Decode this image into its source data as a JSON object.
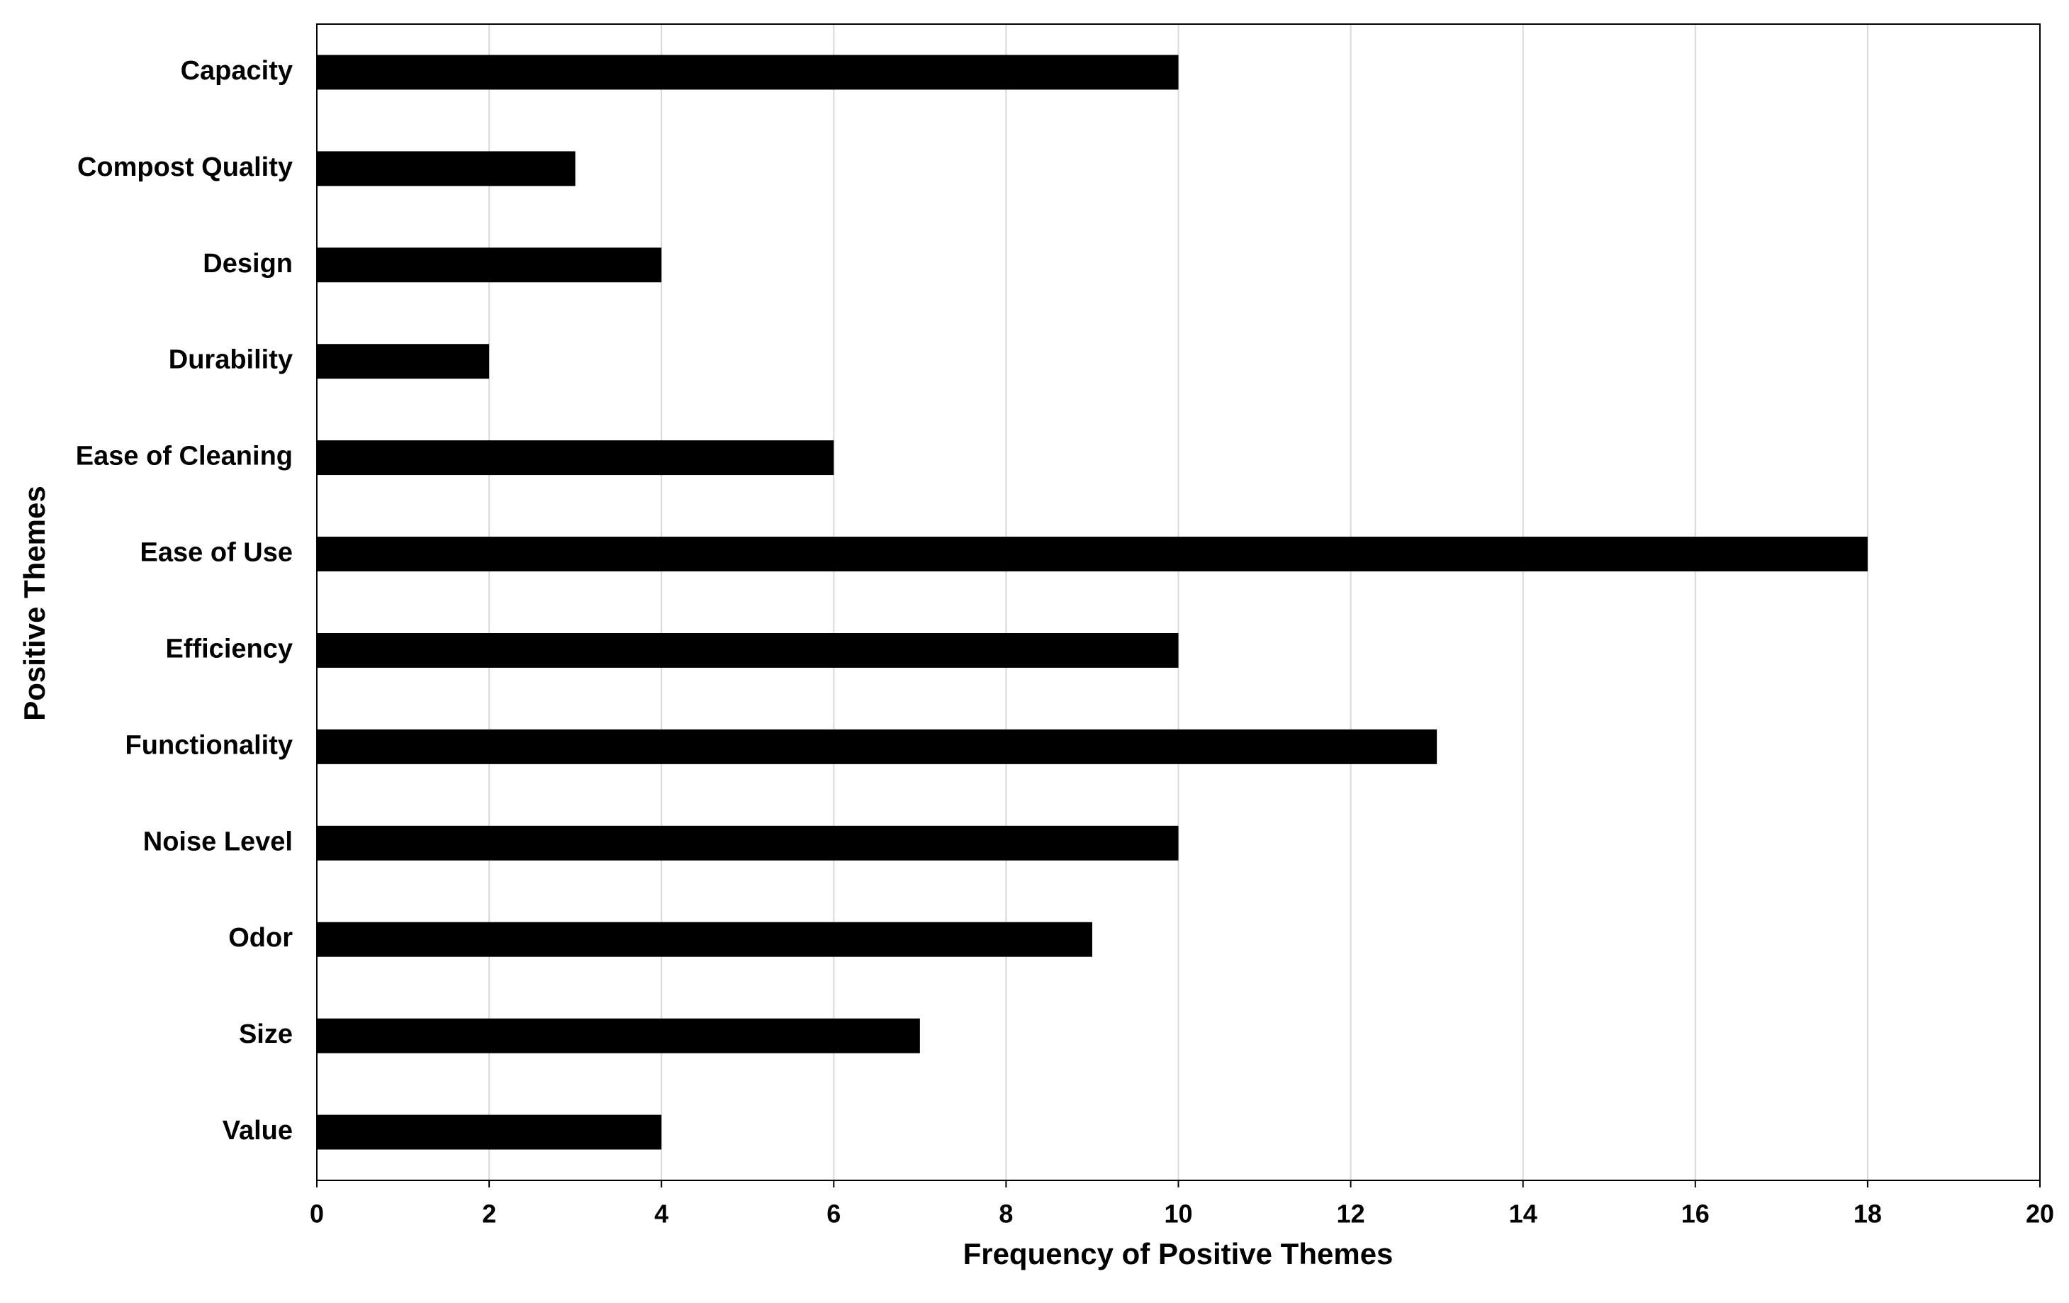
{
  "chart_data": {
    "type": "barh",
    "xlabel": "Frequency of Positive Themes",
    "ylabel": "Positive Themes",
    "categories": [
      "Capacity",
      "Compost Quality",
      "Design",
      "Durability",
      "Ease of Cleaning",
      "Ease of Use",
      "Efficiency",
      "Functionality",
      "Noise Level",
      "Odor",
      "Size",
      "Value"
    ],
    "values": [
      10,
      3,
      4,
      2,
      6,
      18,
      10,
      13,
      10,
      9,
      7,
      4
    ],
    "color": "#000000",
    "xlim": [
      0,
      20
    ],
    "xticks": [
      0,
      2,
      4,
      6,
      8,
      10,
      12,
      14,
      16,
      18,
      20
    ],
    "grid": true
  }
}
